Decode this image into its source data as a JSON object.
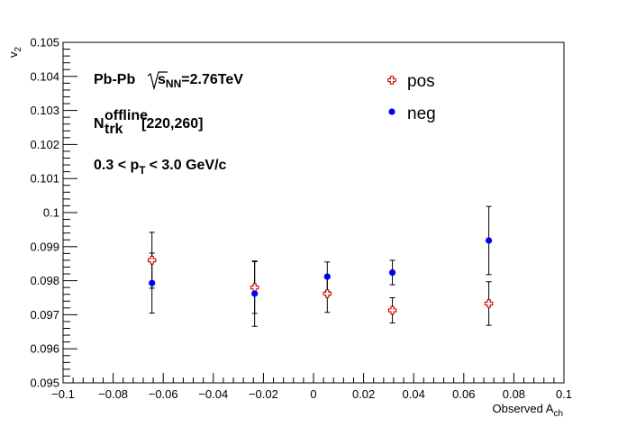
{
  "chart_data": {
    "type": "scatter",
    "xlabel": "Observed A",
    "xlabel_sub": "ch",
    "ylabel": "v",
    "ylabel_sub": "2",
    "xlim": [
      -0.1,
      0.1
    ],
    "ylim": [
      0.095,
      0.105
    ],
    "x_tick_labels": [
      "−0.1",
      "−0.08",
      "−0.06",
      "−0.04",
      "−0.02",
      "0",
      "0.02",
      "0.04",
      "0.06",
      "0.08",
      "0.1"
    ],
    "y_tick_labels": [
      "0.095",
      "0.096",
      "0.097",
      "0.098",
      "0.099",
      "0.1",
      "0.101",
      "0.102",
      "0.103",
      "0.104",
      "0.105"
    ],
    "grid": false,
    "legend_position": "top-right",
    "annotations": {
      "system": "Pb-Pb",
      "energy_sym": "s",
      "energy_sub": "NN",
      "energy_val": "=2.76TeV",
      "ntrk_sym": "N",
      "ntrk_sup": "offline",
      "ntrk_sub": "trk",
      "ntrk_range": "[220,260]",
      "pt_pre": "0.3 < p",
      "pt_sub": "T",
      "pt_post": "< 3.0 GeV/c"
    },
    "series": [
      {
        "name": "pos",
        "color": "#cc0000",
        "marker": "open-cross",
        "x": [
          -0.0645,
          -0.0235,
          0.0055,
          0.0315,
          0.07
        ],
        "y": [
          0.0986,
          0.0978,
          0.09762,
          0.09713,
          0.09733
        ],
        "err": [
          0.00082,
          0.00076,
          0.00055,
          0.00037,
          0.00064
        ]
      },
      {
        "name": "neg",
        "color": "#0000ee",
        "marker": "filled-circle",
        "x": [
          -0.0645,
          -0.0235,
          0.0055,
          0.0315,
          0.07
        ],
        "y": [
          0.09793,
          0.09762,
          0.09812,
          0.09824,
          0.09918
        ],
        "err": [
          0.00088,
          0.00096,
          0.00043,
          0.00036,
          0.001
        ]
      }
    ]
  }
}
